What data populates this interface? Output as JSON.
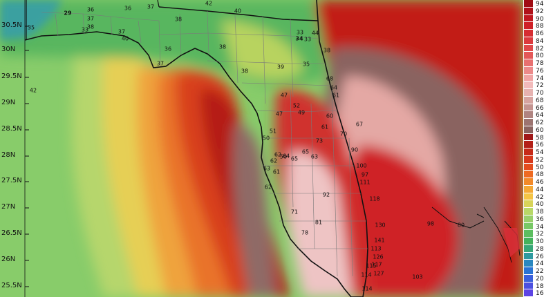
{
  "latitude_labels": [
    "30.5N",
    "30N",
    "29.5N",
    "29N",
    "28.5N",
    "28N",
    "27.5N",
    "27N",
    "26.5N",
    "26N",
    "25.5N"
  ],
  "legend": {
    "values": [
      "94",
      "92",
      "90",
      "88",
      "86",
      "84",
      "82",
      "80",
      "78",
      "76",
      "74",
      "72",
      "70",
      "68",
      "66",
      "64",
      "62",
      "60",
      "58",
      "56",
      "54",
      "52",
      "50",
      "48",
      "46",
      "44",
      "42",
      "40",
      "38",
      "36",
      "34",
      "32",
      "30",
      "28",
      "26",
      "24",
      "22",
      "20",
      "18",
      "16"
    ],
    "colors": [
      "#a00d14",
      "#b0121a",
      "#c01820",
      "#cf2027",
      "#d62d32",
      "#dc3b3e",
      "#e0494a",
      "#e45858",
      "#e87070",
      "#ec8a8a",
      "#f0a4a4",
      "#f2baba",
      "#e6b2b0",
      "#d6a4a0",
      "#c49490",
      "#b08480",
      "#9c7470",
      "#8a6460",
      "#a01818",
      "#b32018",
      "#c62a18",
      "#d7391c",
      "#e44d1e",
      "#ee6a22",
      "#f28a2a",
      "#f4a835",
      "#f4c445",
      "#d8d45a",
      "#b8d868",
      "#98d06c",
      "#78c866",
      "#5cbe60",
      "#44b25c",
      "#38a878",
      "#2e9aa0",
      "#2a88c0",
      "#2a74d4",
      "#3a60dc",
      "#4c50e0",
      "#5c44e4"
    ]
  },
  "point_values": [
    "29",
    "36",
    "37",
    "38",
    "37",
    "42",
    "40",
    "36",
    "35",
    "37",
    "33",
    "38",
    "40",
    "36",
    "38",
    "34",
    "33",
    "44",
    "42",
    "33",
    "35",
    "38",
    "39",
    "38",
    "47",
    "37",
    "50",
    "68",
    "64",
    "61",
    "52",
    "47",
    "49",
    "60",
    "51",
    "61",
    "67",
    "70",
    "50",
    "73",
    "90",
    "62",
    "62",
    "64",
    "65",
    "65",
    "63",
    "63",
    "61",
    "100",
    "97",
    "111",
    "62",
    "92",
    "118",
    "71",
    "81",
    "130",
    "78",
    "141",
    "113",
    "126",
    "117",
    "115",
    "127",
    "114",
    "114",
    "103",
    "98",
    "80"
  ]
}
